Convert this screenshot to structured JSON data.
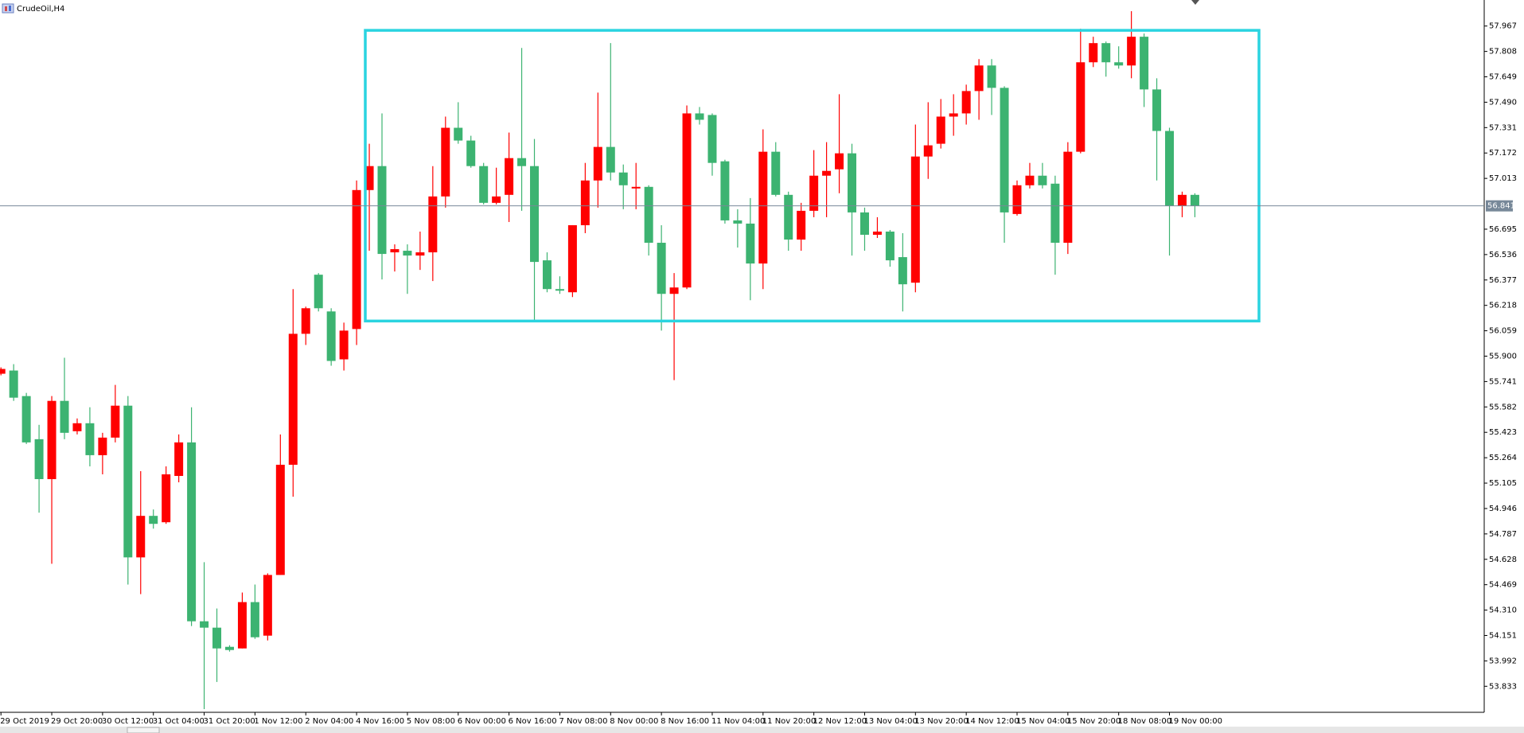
{
  "chart_data": {
    "type": "candlestick",
    "title": "CrudeOil,H4",
    "up_color": "#ff0000",
    "down_color": "#3cb371",
    "categories": [
      "29 Oct 2019",
      null,
      null,
      null,
      "29 Oct 20:00",
      null,
      null,
      null,
      "30 Oct 12:00",
      null,
      null,
      null,
      "31 Oct 04:00",
      null,
      null,
      null,
      "31 Oct 20:00",
      null,
      null,
      null,
      "1 Nov 12:00",
      null,
      null,
      null,
      "2 Nov 04:00",
      null,
      null,
      null,
      "4 Nov 16:00",
      null,
      null,
      null,
      "5 Nov 08:00",
      null,
      null,
      null,
      "6 Nov 00:00",
      null,
      null,
      null,
      "6 Nov 16:00",
      null,
      null,
      null,
      "7 Nov 08:00",
      null,
      null,
      null,
      "8 Nov 00:00",
      null,
      null,
      null,
      "8 Nov 16:00",
      null,
      null,
      null,
      "11 Nov 04:00",
      null,
      null,
      null,
      "11 Nov 20:00",
      null,
      null,
      null,
      "12 Nov 12:00",
      null,
      null,
      null,
      "13 Nov 04:00",
      null,
      null,
      null,
      "13 Nov 20:00",
      null,
      null,
      null,
      "14 Nov 12:00",
      null,
      null,
      null,
      "15 Nov 04:00",
      null,
      null,
      null,
      "15 Nov 20:00",
      null,
      null,
      null,
      "18 Nov 08:00",
      null,
      null,
      null,
      "19 Nov 00:00",
      null,
      null
    ],
    "open": [
      55.79,
      55.81,
      55.65,
      55.38,
      55.13,
      55.62,
      55.43,
      55.48,
      55.28,
      55.39,
      55.59,
      54.64,
      54.9,
      54.86,
      55.15,
      55.36,
      54.24,
      54.2,
      54.08,
      54.07,
      54.36,
      54.15,
      54.53,
      55.22,
      56.04,
      56.41,
      56.18,
      55.88,
      56.07,
      56.94,
      57.09,
      56.55,
      56.56,
      56.53,
      56.55,
      56.9,
      57.33,
      57.25,
      57.09,
      56.86,
      56.91,
      57.14,
      57.09,
      56.5,
      56.32,
      56.3,
      56.72,
      57.0,
      57.21,
      57.05,
      56.95,
      56.96,
      56.61,
      56.29,
      56.33,
      57.42,
      57.41,
      57.12,
      56.75,
      56.73,
      56.48,
      57.18,
      56.91,
      56.63,
      56.81,
      57.03,
      57.07,
      57.17,
      56.8,
      56.66,
      56.68,
      56.52,
      56.36,
      57.15,
      57.23,
      57.4,
      57.42,
      57.56,
      57.72,
      57.58,
      56.79,
      56.97,
      57.03,
      56.98,
      56.61,
      57.18,
      57.74,
      57.86,
      57.74,
      57.72,
      57.9,
      57.57,
      57.31,
      56.84,
      56.91
    ],
    "high": [
      55.83,
      55.85,
      55.67,
      55.47,
      55.65,
      55.89,
      55.51,
      55.58,
      55.42,
      55.72,
      55.65,
      55.18,
      54.94,
      55.21,
      55.41,
      55.58,
      54.61,
      54.32,
      54.09,
      54.42,
      54.47,
      54.54,
      55.41,
      56.32,
      56.21,
      56.42,
      56.2,
      56.11,
      57.0,
      57.23,
      57.42,
      56.6,
      56.6,
      56.68,
      57.09,
      57.4,
      57.49,
      57.28,
      57.11,
      57.08,
      57.3,
      57.83,
      57.26,
      56.55,
      56.4,
      56.72,
      57.11,
      57.55,
      57.86,
      57.1,
      57.11,
      56.97,
      56.72,
      56.42,
      57.47,
      57.46,
      57.42,
      57.13,
      56.82,
      56.89,
      57.32,
      57.24,
      56.93,
      56.86,
      57.19,
      57.24,
      57.54,
      57.23,
      56.83,
      56.77,
      56.69,
      56.67,
      57.35,
      57.49,
      57.51,
      57.54,
      57.6,
      57.76,
      57.76,
      57.59,
      57.0,
      57.11,
      57.11,
      57.03,
      57.24,
      57.95,
      57.9,
      57.87,
      57.84,
      58.06,
      57.92,
      57.64,
      57.33,
      56.93,
      56.92
    ],
    "low": [
      55.78,
      55.62,
      55.35,
      54.92,
      54.6,
      55.38,
      55.41,
      55.21,
      55.16,
      55.36,
      54.47,
      54.41,
      54.82,
      54.85,
      55.11,
      54.21,
      53.69,
      53.86,
      54.05,
      54.07,
      54.13,
      54.12,
      54.53,
      55.02,
      55.97,
      56.18,
      55.84,
      55.81,
      55.97,
      56.56,
      56.38,
      56.43,
      56.29,
      56.44,
      56.37,
      56.83,
      57.23,
      57.08,
      56.85,
      56.85,
      56.74,
      56.81,
      56.12,
      56.3,
      56.29,
      56.27,
      56.67,
      56.83,
      57.0,
      56.82,
      56.82,
      56.53,
      56.06,
      55.75,
      56.32,
      57.35,
      57.03,
      56.73,
      56.58,
      56.25,
      56.32,
      56.9,
      56.56,
      56.56,
      56.77,
      56.77,
      56.92,
      56.53,
      56.56,
      56.64,
      56.46,
      56.18,
      56.3,
      57.01,
      57.2,
      57.28,
      57.35,
      57.38,
      57.41,
      56.61,
      56.78,
      56.95,
      56.95,
      56.41,
      56.54,
      57.17,
      57.71,
      57.65,
      57.7,
      57.64,
      57.46,
      57.0,
      56.53,
      56.77,
      56.77
    ],
    "close": [
      55.82,
      55.64,
      55.36,
      55.13,
      55.62,
      55.42,
      55.48,
      55.28,
      55.39,
      55.59,
      54.64,
      54.9,
      54.85,
      55.16,
      55.36,
      54.24,
      54.2,
      54.07,
      54.06,
      54.36,
      54.14,
      54.53,
      55.22,
      56.04,
      56.2,
      56.2,
      55.87,
      56.06,
      56.94,
      57.09,
      56.54,
      56.57,
      56.53,
      56.55,
      56.9,
      57.33,
      57.25,
      57.09,
      56.86,
      56.9,
      57.14,
      57.09,
      56.49,
      56.32,
      56.31,
      56.72,
      57.0,
      57.21,
      57.05,
      56.97,
      56.96,
      56.61,
      56.29,
      56.33,
      57.42,
      57.38,
      57.11,
      56.75,
      56.73,
      56.48,
      57.18,
      56.91,
      56.63,
      56.81,
      57.03,
      57.06,
      57.17,
      56.8,
      56.66,
      56.68,
      56.5,
      56.35,
      57.15,
      57.22,
      57.4,
      57.42,
      57.56,
      57.72,
      57.58,
      56.8,
      56.97,
      57.03,
      56.97,
      56.61,
      57.18,
      57.74,
      57.86,
      57.74,
      57.72,
      57.9,
      57.57,
      57.31,
      56.84,
      56.91,
      56.841
    ],
    "ylim": [
      53.67,
      58.13
    ],
    "yticks": [
      57.967,
      57.808,
      57.649,
      {
        "value": 57.49,
        "label": "57.490"
      },
      57.331,
      57.172,
      57.013,
      56.695,
      56.536,
      56.377,
      56.218,
      56.059,
      {
        "value": 55.9,
        "label": "55.900"
      },
      55.741,
      55.582,
      55.423,
      55.264,
      55.105,
      54.946,
      54.787,
      54.628,
      54.469,
      {
        "value": 54.31,
        "label": "54.310"
      },
      54.151,
      53.992,
      53.833
    ],
    "price_line": 56.841,
    "price_line_color": "#778899",
    "box": {
      "top": 57.94,
      "bottom": 56.12,
      "color": "#2ad4e0"
    },
    "grid": false
  }
}
